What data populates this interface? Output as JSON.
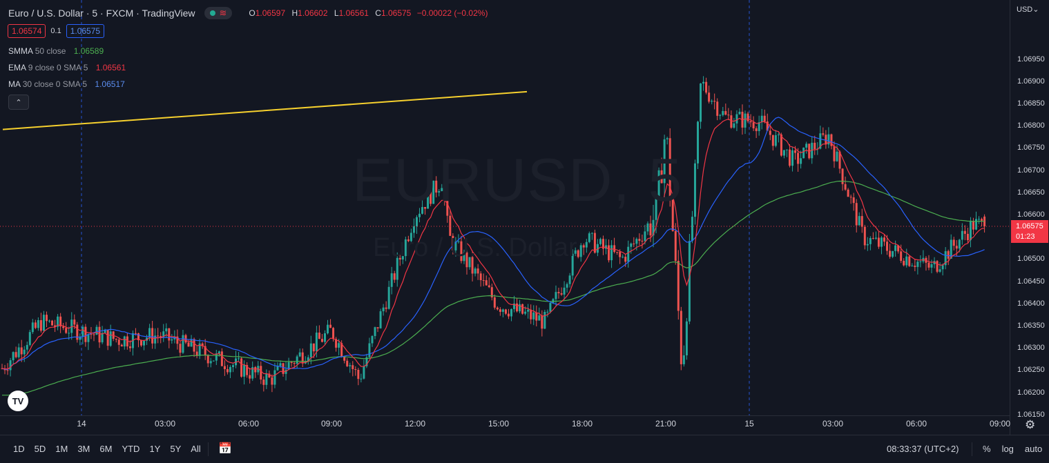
{
  "header": {
    "title": "Euro / U.S. Dollar · 5 · FXCM · TradingView",
    "ohlc": {
      "o_label": "O",
      "o": "1.06597",
      "h_label": "H",
      "h": "1.06602",
      "l_label": "L",
      "l": "1.06561",
      "c_label": "C",
      "c": "1.06575",
      "change": "−0.00022 (−0.02%)"
    }
  },
  "quote": {
    "bid": "1.06574",
    "spread": "0.1",
    "ask": "1.06575"
  },
  "indicators": [
    {
      "name": "SMMA",
      "params": "50 close",
      "value": "1.06589",
      "color": "#4caf50"
    },
    {
      "name": "EMA",
      "params": "9 close 0 SMA 5",
      "value": "1.06561",
      "color": "#f23645"
    },
    {
      "name": "MA",
      "params": "30 close 0 SMA 5",
      "value": "1.06517",
      "color": "#2962ff"
    }
  ],
  "collapse_icon": "chevron-up-icon",
  "watermark": {
    "symbol": "EURUSD, 5",
    "description": "Euro / U.S. Dollar"
  },
  "price_axis": {
    "currency": "USD",
    "labels": [
      "1.06950",
      "1.06900",
      "1.06850",
      "1.06800",
      "1.06750",
      "1.06700",
      "1.06650",
      "1.06600",
      "1.06500",
      "1.06450",
      "1.06400",
      "1.06350",
      "1.06300",
      "1.06250",
      "1.06200",
      "1.06150"
    ],
    "current_price": "1.06575",
    "countdown": "01:23"
  },
  "time_axis": {
    "labels": [
      "14",
      "03:00",
      "06:00",
      "09:00",
      "12:00",
      "15:00",
      "18:00",
      "21:00",
      "15",
      "03:00",
      "06:00",
      "09:00"
    ]
  },
  "bottom_bar": {
    "ranges": [
      "1D",
      "5D",
      "1M",
      "3M",
      "6M",
      "YTD",
      "1Y",
      "5Y",
      "All"
    ],
    "clock": "08:33:37 (UTC+2)",
    "scale_percent": "%",
    "scale_log": "log",
    "scale_auto": "auto"
  },
  "colors": {
    "background": "#131722",
    "up": "#26a69a",
    "down": "#ef5350",
    "smma": "#4caf50",
    "ema": "#f23645",
    "ma": "#2962ff",
    "trendline": "#f7d12e"
  },
  "chart_data": {
    "type": "candlestick",
    "symbol": "EURUSD",
    "interval": "5",
    "ylim": [
      1.06115,
      1.06975
    ],
    "x_axis_labels": [
      "14",
      "03:00",
      "06:00",
      "09:00",
      "12:00",
      "15:00",
      "18:00",
      "21:00",
      "15",
      "03:00",
      "06:00",
      "09:00"
    ],
    "close_path": [
      [
        "20:45",
        1.0625
      ],
      [
        "23:00",
        1.0636
      ],
      [
        "02:00",
        1.0632
      ],
      [
        "04:00",
        1.0633
      ],
      [
        "06:30",
        1.0623
      ],
      [
        "09:00",
        1.0634
      ],
      [
        "10:30",
        1.0623
      ],
      [
        "12:00",
        1.066
      ],
      [
        "12:45",
        1.0668
      ],
      [
        "13:30",
        1.0655
      ],
      [
        "16:00",
        1.064
      ],
      [
        "17:00",
        1.0636
      ],
      [
        "18:00",
        1.0655
      ],
      [
        "19:00",
        1.065
      ],
      [
        "20:00",
        1.066
      ],
      [
        "20:45",
        1.068
      ],
      [
        "21:15",
        1.0625
      ],
      [
        "22:00",
        1.069
      ],
      [
        "23:00",
        1.0682
      ],
      [
        "01:00",
        1.0681
      ],
      [
        "02:00",
        1.0672
      ],
      [
        "03:00",
        1.0678
      ],
      [
        "04:00",
        1.0655
      ],
      [
        "06:00",
        1.0648
      ],
      [
        "07:30",
        1.0658
      ],
      [
        "08:30",
        1.06575
      ]
    ],
    "series": [
      {
        "name": "SMMA 50 close",
        "last": 1.06589
      },
      {
        "name": "EMA 9 close 0 SMA 5",
        "last": 1.06561
      },
      {
        "name": "MA 30 close 0 SMA 5",
        "last": 1.06517
      }
    ],
    "trendline": {
      "start": [
        "19:00 (13th)",
        1.06793
      ],
      "end": [
        "16:00",
        1.06878
      ]
    },
    "last": {
      "open": 1.06597,
      "high": 1.06602,
      "low": 1.06561,
      "close": 1.06575
    }
  }
}
